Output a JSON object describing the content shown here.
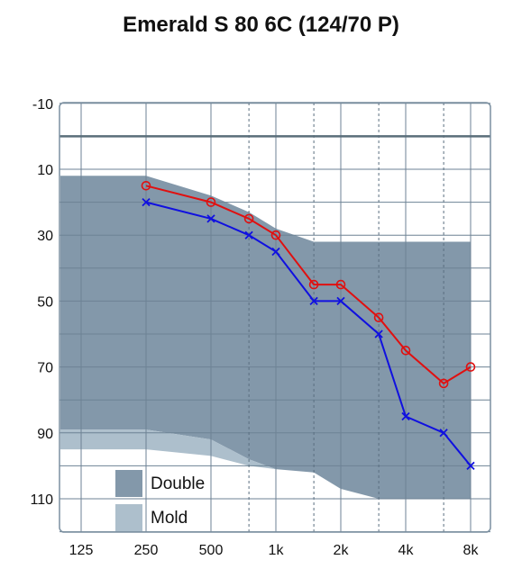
{
  "chart_data": {
    "type": "line",
    "title": "Emerald S 80 6C (124/70 P)",
    "xlabel": "",
    "ylabel": "",
    "x_tick_labels": [
      "125",
      "250",
      "500",
      "1k",
      "2k",
      "4k",
      "8k"
    ],
    "x_tick_values": [
      125,
      250,
      500,
      1000,
      2000,
      4000,
      8000
    ],
    "y_tick_labels": [
      "-10",
      "10",
      "30",
      "50",
      "70",
      "90",
      "110"
    ],
    "y_tick_values": [
      -10,
      10,
      30,
      50,
      70,
      90,
      110
    ],
    "ylim": [
      -10,
      120
    ],
    "y_inverted": true,
    "x_scale": "log",
    "x_dashed_gridlines": [
      750,
      1500,
      3000,
      6000
    ],
    "reference_line_y": 0,
    "fit_ranges": [
      {
        "name": "Double",
        "color": "#8398aa",
        "upper": [
          [
            90,
            12
          ],
          [
            250,
            12
          ],
          [
            500,
            18
          ],
          [
            750,
            23
          ],
          [
            1000,
            28
          ],
          [
            1500,
            32
          ],
          [
            8000,
            32
          ]
        ],
        "lower": [
          [
            8000,
            110
          ],
          [
            3000,
            110
          ],
          [
            2000,
            107
          ],
          [
            1500,
            102
          ],
          [
            1000,
            101
          ],
          [
            750,
            98
          ],
          [
            500,
            92
          ],
          [
            250,
            89
          ],
          [
            90,
            89
          ]
        ]
      },
      {
        "name": "Mold",
        "color": "#adbfcc",
        "upper": [
          [
            90,
            89
          ],
          [
            250,
            89
          ],
          [
            500,
            92
          ],
          [
            750,
            98
          ],
          [
            1000,
            101
          ]
        ],
        "lower": [
          [
            1000,
            101
          ],
          [
            750,
            100
          ],
          [
            500,
            97
          ],
          [
            250,
            95
          ],
          [
            90,
            95
          ]
        ]
      }
    ],
    "series": [
      {
        "color": "#e01010",
        "marker": "circle",
        "points": [
          [
            250,
            15
          ],
          [
            500,
            20
          ],
          [
            750,
            25
          ],
          [
            1000,
            30
          ],
          [
            1500,
            45
          ],
          [
            2000,
            45
          ],
          [
            3000,
            55
          ],
          [
            4000,
            65
          ],
          [
            6000,
            75
          ],
          [
            8000,
            70
          ]
        ]
      },
      {
        "color": "#1010e0",
        "marker": "x",
        "points": [
          [
            250,
            20
          ],
          [
            500,
            25
          ],
          [
            750,
            30
          ],
          [
            1000,
            35
          ],
          [
            1500,
            50
          ],
          [
            2000,
            50
          ],
          [
            3000,
            60
          ],
          [
            4000,
            85
          ],
          [
            6000,
            90
          ],
          [
            8000,
            100
          ]
        ]
      }
    ],
    "legend": {
      "position": "bottom-left",
      "items": [
        {
          "label": "Double",
          "color": "#8398aa"
        },
        {
          "label": "Mold",
          "color": "#adbfcc"
        }
      ]
    }
  }
}
